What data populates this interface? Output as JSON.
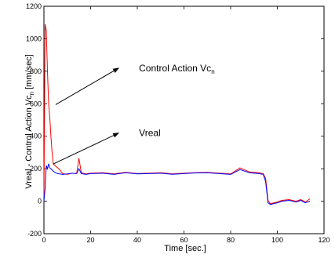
{
  "chart_data": {
    "type": "line",
    "title": "",
    "xlabel": "Time [sec.]",
    "ylabel": "Vreal - Control Action Vc",
    "ylabel_sub": "n",
    "ylabel_unit": "[mm/sec]",
    "xlim": [
      0,
      120
    ],
    "ylim": [
      -200,
      1200
    ],
    "xticks": [
      0,
      20,
      40,
      60,
      80,
      100,
      120
    ],
    "yticks": [
      -200,
      0,
      200,
      400,
      600,
      800,
      1000,
      1200
    ],
    "grid": false,
    "annotations": [
      {
        "text": "Control Action Vc",
        "sub": "n",
        "arrow_to": [
          3,
          580
        ],
        "text_at": [
          34,
          800
        ]
      },
      {
        "text": "Vreal",
        "arrow_to": [
          2,
          215
        ],
        "text_at": [
          34,
          400
        ]
      }
    ],
    "series": [
      {
        "name": "Control Action Vc",
        "color": "#ff0000",
        "x": [
          0,
          0.5,
          1,
          1.5,
          2,
          2.5,
          3,
          3.5,
          4,
          5,
          6,
          7,
          8,
          10,
          12,
          14,
          15,
          16,
          18,
          20,
          25,
          30,
          35,
          40,
          45,
          50,
          55,
          60,
          65,
          70,
          75,
          80,
          84,
          88,
          92,
          94,
          95,
          96,
          97,
          100,
          102,
          105,
          108,
          110,
          112,
          114
        ],
        "y": [
          20,
          1090,
          1050,
          800,
          600,
          520,
          400,
          300,
          230,
          215,
          205,
          190,
          170,
          165,
          172,
          170,
          265,
          175,
          168,
          172,
          175,
          168,
          178,
          170,
          172,
          175,
          168,
          172,
          176,
          178,
          172,
          168,
          205,
          180,
          175,
          170,
          140,
          5,
          -15,
          -5,
          5,
          10,
          0,
          10,
          -5,
          15
        ]
      },
      {
        "name": "Vreal",
        "color": "#0000ff",
        "x": [
          0,
          0.5,
          1,
          1.5,
          2,
          2.5,
          3,
          4,
          5,
          6,
          8,
          10,
          12,
          14,
          15,
          16,
          18,
          20,
          25,
          30,
          35,
          40,
          45,
          50,
          55,
          60,
          65,
          70,
          75,
          80,
          84,
          88,
          92,
          94,
          95,
          96,
          97,
          100,
          102,
          105,
          108,
          110,
          112,
          114
        ],
        "y": [
          0,
          80,
          220,
          200,
          230,
          205,
          200,
          185,
          175,
          170,
          165,
          168,
          172,
          170,
          200,
          170,
          165,
          170,
          172,
          165,
          175,
          168,
          170,
          172,
          166,
          170,
          174,
          175,
          170,
          165,
          195,
          175,
          170,
          165,
          120,
          -10,
          -20,
          -10,
          0,
          5,
          -5,
          5,
          -10,
          0
        ]
      }
    ]
  }
}
